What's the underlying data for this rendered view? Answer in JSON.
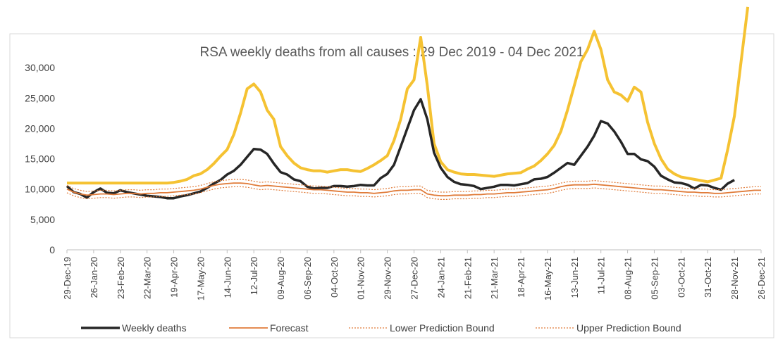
{
  "chart_data": {
    "type": "line",
    "title": "RSA weekly deaths from all causes : 29 Dec 2019 - 04 Dec 2021",
    "categories": [
      "29-Dec-19",
      null,
      null,
      null,
      "26-Jan-20",
      null,
      null,
      null,
      "23-Feb-20",
      null,
      null,
      null,
      "22-Mar-20",
      null,
      null,
      null,
      "19-Apr-20",
      null,
      null,
      null,
      "17-May-20",
      null,
      null,
      null,
      "14-Jun-20",
      null,
      null,
      null,
      "12-Jul-20",
      null,
      null,
      null,
      "09-Aug-20",
      null,
      null,
      null,
      "06-Sep-20",
      null,
      null,
      null,
      "04-Oct-20",
      null,
      null,
      null,
      "01-Nov-20",
      null,
      null,
      null,
      "29-Nov-20",
      null,
      null,
      null,
      "27-Dec-20",
      null,
      null,
      null,
      "24-Jan-21",
      null,
      null,
      null,
      "21-Feb-21",
      null,
      null,
      null,
      "21-Mar-21",
      null,
      null,
      null,
      "18-Apr-21",
      null,
      null,
      null,
      "16-May-21",
      null,
      null,
      null,
      "13-Jun-21",
      null,
      null,
      null,
      "11-Jul-21",
      null,
      null,
      null,
      "08-Aug-21",
      null,
      null,
      null,
      "05-Sep-21",
      null,
      null,
      null,
      "03-Oct-21",
      null,
      null,
      null,
      "31-Oct-21",
      null,
      null,
      null,
      "28-Nov-21",
      null,
      null,
      null,
      "26-Dec-21"
    ],
    "ylim": [
      0,
      35000
    ],
    "yticks": [
      0,
      {
        "value": 5000,
        "label": "5,000"
      },
      {
        "value": 10000,
        "label": "10,000"
      },
      {
        "value": 15000,
        "label": "15,000"
      },
      {
        "value": 20000,
        "label": "20,000"
      },
      {
        "value": 25000,
        "label": "25,000"
      },
      {
        "value": 30000,
        "label": "30,000"
      }
    ],
    "grid": false,
    "legend": "bottom",
    "series": [
      {
        "color": "#f5c232",
        "width": 4,
        "style": "solid",
        "values": [
          11000,
          11000,
          11000,
          11000,
          11000,
          11000,
          11000,
          11000,
          11000,
          11000,
          11000,
          11000,
          11000,
          11000,
          11000,
          11000,
          11100,
          11300,
          11600,
          12200,
          12500,
          13200,
          14200,
          15400,
          16500,
          19000,
          22500,
          26500,
          27300,
          26000,
          23000,
          21500,
          17000,
          15500,
          14300,
          13500,
          13200,
          13000,
          13000,
          12800,
          13000,
          13200,
          13200,
          13000,
          12900,
          13400,
          14000,
          14700,
          15500,
          18000,
          21500,
          26500,
          28000,
          35000,
          27000,
          17500,
          14500,
          13200,
          12800,
          12500,
          12400,
          12400,
          12300,
          12200,
          12100,
          12300,
          12500,
          12600,
          12700,
          13300,
          13800,
          14700,
          15800,
          17200,
          19500,
          23000,
          27000,
          31000,
          33000,
          36000,
          33000,
          28000,
          26000,
          25500,
          24500,
          26800,
          26000,
          21000,
          17500,
          15000,
          13300,
          12500,
          12000,
          11800,
          11600,
          11400,
          11200,
          11500,
          11800,
          16500,
          22000,
          31000,
          40000,
          null,
          null
        ]
      },
      {
        "name": "Weekly deaths",
        "color": "#262626",
        "width": 3.5,
        "style": "solid",
        "values": [
          10500,
          9500,
          9200,
          8600,
          9500,
          10100,
          9400,
          9300,
          9800,
          9500,
          9300,
          9100,
          8900,
          8800,
          8700,
          8500,
          8500,
          8800,
          9000,
          9300,
          9600,
          10200,
          10900,
          11500,
          12400,
          13000,
          14000,
          15300,
          16600,
          16500,
          15800,
          14200,
          12800,
          12400,
          11600,
          11300,
          10400,
          10100,
          10200,
          10200,
          10500,
          10500,
          10400,
          10500,
          10700,
          10600,
          10600,
          11800,
          12500,
          14000,
          17000,
          20000,
          23000,
          24800,
          21500,
          16000,
          13500,
          12000,
          11200,
          10800,
          10700,
          10500,
          10000,
          10200,
          10400,
          10700,
          10700,
          10600,
          10800,
          11000,
          11600,
          11700,
          12000,
          12700,
          13500,
          14300,
          14000,
          15500,
          17000,
          18800,
          21200,
          20800,
          19500,
          17800,
          15800,
          15800,
          14900,
          14600,
          13700,
          12200,
          11600,
          11100,
          11000,
          10700,
          10100,
          10700,
          10600,
          10200,
          9900,
          10900,
          11500,
          null,
          null,
          null,
          null
        ]
      },
      {
        "name": "Forecast",
        "color": "#e07b39",
        "width": 1.8,
        "style": "solid",
        "values": [
          10000,
          9500,
          9200,
          9000,
          9100,
          9200,
          9200,
          9100,
          9200,
          9300,
          9300,
          9200,
          9300,
          9300,
          9400,
          9400,
          9500,
          9600,
          9700,
          9800,
          10000,
          10300,
          10600,
          10800,
          10900,
          11000,
          11000,
          10900,
          10700,
          10500,
          10600,
          10500,
          10400,
          10300,
          10200,
          10100,
          10000,
          9900,
          9900,
          9800,
          9700,
          9600,
          9500,
          9500,
          9400,
          9400,
          9300,
          9400,
          9500,
          9700,
          9800,
          9800,
          9900,
          9900,
          9200,
          9000,
          8900,
          8900,
          9000,
          9000,
          9000,
          9100,
          9100,
          9200,
          9200,
          9300,
          9400,
          9400,
          9500,
          9600,
          9700,
          9800,
          9900,
          10100,
          10400,
          10600,
          10700,
          10700,
          10700,
          10800,
          10700,
          10600,
          10500,
          10400,
          10300,
          10200,
          10100,
          10000,
          9900,
          9900,
          9800,
          9700,
          9600,
          9500,
          9500,
          9400,
          9400,
          9300,
          9300,
          9400,
          9500,
          9600,
          9700,
          9800,
          9800
        ]
      },
      {
        "name": "Lower Prediction Bound",
        "color": "#e07b39",
        "width": 1.2,
        "style": "dotted",
        "values": [
          9400,
          8900,
          8600,
          8400,
          8500,
          8600,
          8600,
          8500,
          8600,
          8700,
          8700,
          8600,
          8700,
          8700,
          8800,
          8800,
          8900,
          9000,
          9100,
          9200,
          9400,
          9700,
          10000,
          10200,
          10300,
          10400,
          10400,
          10300,
          10100,
          9900,
          10000,
          9900,
          9800,
          9700,
          9600,
          9500,
          9400,
          9300,
          9300,
          9200,
          9100,
          9000,
          8900,
          8900,
          8800,
          8800,
          8700,
          8800,
          8900,
          9100,
          9200,
          9200,
          9300,
          9300,
          8600,
          8400,
          8300,
          8300,
          8400,
          8400,
          8400,
          8500,
          8500,
          8600,
          8600,
          8700,
          8800,
          8800,
          8900,
          9000,
          9100,
          9200,
          9300,
          9500,
          9800,
          10000,
          10100,
          10100,
          10100,
          10200,
          10100,
          10000,
          9900,
          9800,
          9700,
          9600,
          9500,
          9400,
          9300,
          9300,
          9200,
          9100,
          9000,
          8900,
          8900,
          8800,
          8800,
          8700,
          8700,
          8800,
          8900,
          9000,
          9100,
          9200,
          9200
        ]
      },
      {
        "name": "Upper Prediction Bound",
        "color": "#e07b39",
        "width": 1.2,
        "style": "dotted",
        "values": [
          10600,
          10100,
          9800,
          9600,
          9700,
          9800,
          9800,
          9700,
          9800,
          9900,
          9900,
          9800,
          9900,
          9900,
          10000,
          10000,
          10100,
          10200,
          10300,
          10400,
          10600,
          10900,
          11200,
          11400,
          11500,
          11600,
          11600,
          11500,
          11300,
          11100,
          11200,
          11100,
          11000,
          10900,
          10800,
          10700,
          10600,
          10500,
          10500,
          10400,
          10300,
          10200,
          10100,
          10100,
          10000,
          10000,
          9900,
          10000,
          10100,
          10300,
          10400,
          10400,
          10500,
          10500,
          9800,
          9600,
          9500,
          9500,
          9600,
          9600,
          9600,
          9700,
          9700,
          9800,
          9800,
          9900,
          10000,
          10000,
          10100,
          10200,
          10300,
          10400,
          10500,
          10700,
          11000,
          11200,
          11300,
          11300,
          11300,
          11400,
          11300,
          11200,
          11100,
          11000,
          10900,
          10800,
          10700,
          10600,
          10500,
          10500,
          10400,
          10300,
          10200,
          10100,
          10100,
          10000,
          10000,
          9900,
          9900,
          10000,
          10100,
          10200,
          10300,
          10400,
          10400
        ]
      }
    ]
  }
}
